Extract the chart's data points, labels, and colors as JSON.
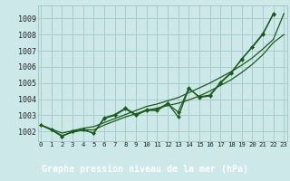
{
  "title": "Graphe pression niveau de la mer (hPa)",
  "xtick_labels": [
    "0",
    "1",
    "2",
    "3",
    "4",
    "5",
    "6",
    "7",
    "8",
    "9",
    "10",
    "11",
    "12",
    "13",
    "14",
    "15",
    "16",
    "17",
    "18",
    "19",
    "20",
    "21",
    "22",
    "23"
  ],
  "yticks": [
    1002,
    1003,
    1004,
    1005,
    1006,
    1007,
    1008,
    1009
  ],
  "ylim": [
    1001.4,
    1009.8
  ],
  "xlim": [
    -0.3,
    23.3
  ],
  "bg_color": "#cce8e8",
  "grid_color": "#aacccc",
  "line_color": "#1a5c1a",
  "smooth_line1": [
    1002.4,
    1002.15,
    1001.9,
    1002.05,
    1002.2,
    1002.3,
    1002.55,
    1002.8,
    1003.05,
    1003.3,
    1003.55,
    1003.7,
    1003.9,
    1004.1,
    1004.4,
    1004.7,
    1005.0,
    1005.35,
    1005.7,
    1006.1,
    1006.55,
    1007.1,
    1007.7,
    1009.3
  ],
  "smooth_line2": [
    1002.4,
    1002.1,
    1001.75,
    1001.95,
    1002.1,
    1002.1,
    1002.4,
    1002.65,
    1002.9,
    1003.1,
    1003.3,
    1003.45,
    1003.6,
    1003.75,
    1003.95,
    1004.2,
    1004.5,
    1004.85,
    1005.2,
    1005.65,
    1006.15,
    1006.75,
    1007.5,
    1008.0
  ],
  "marked_line1": [
    1002.4,
    1002.1,
    1001.7,
    1002.0,
    1002.1,
    1001.9,
    1002.8,
    1003.0,
    1003.4,
    1003.0,
    1003.3,
    1003.3,
    1003.7,
    1003.2,
    1004.7,
    1004.1,
    1004.2,
    1005.0,
    1005.6,
    1006.5,
    1007.2,
    1008.0,
    1009.3,
    null
  ],
  "marked_line2": [
    1002.4,
    1002.1,
    1001.7,
    1002.0,
    1002.1,
    1001.9,
    1002.85,
    1003.05,
    1003.45,
    1003.05,
    1003.35,
    1003.35,
    1003.75,
    1002.9,
    1004.65,
    1004.15,
    1004.25,
    1005.05,
    1005.65,
    1006.45,
    1007.25,
    1008.05,
    1009.25,
    null
  ]
}
